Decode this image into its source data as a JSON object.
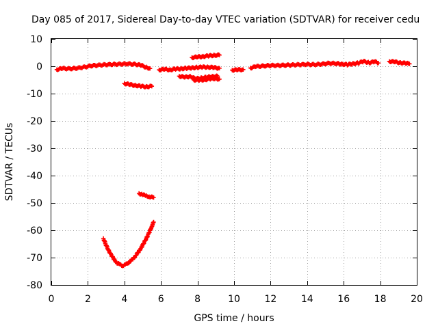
{
  "chart_data": {
    "type": "scatter",
    "title": "Day 085 of 2017, Sidereal Day-to-day VTEC variation (SDTVAR) for receiver cedu",
    "xlabel": "GPS time / hours",
    "ylabel": "SDTVAR / TECUs",
    "xlim": [
      0,
      20
    ],
    "ylim": [
      -80,
      10
    ],
    "xticks": [
      "0",
      "2",
      "4",
      "6",
      "8",
      "10",
      "12",
      "14",
      "16",
      "18",
      "20"
    ],
    "yticks": [
      "10",
      "0",
      "-10",
      "-20",
      "-30",
      "-40",
      "-50",
      "-60",
      "-70",
      "-80"
    ],
    "grid": true,
    "marker_color": "#ff0000",
    "series": [
      {
        "points": [
          [
            0.3,
            -1.2
          ],
          [
            0.6,
            -0.8
          ],
          [
            1.0,
            -0.9
          ],
          [
            1.4,
            -0.7
          ],
          [
            1.8,
            -0.3
          ],
          [
            2.2,
            0.2
          ],
          [
            2.6,
            0.4
          ],
          [
            3.0,
            0.6
          ],
          [
            3.4,
            0.7
          ],
          [
            3.8,
            0.8
          ],
          [
            4.2,
            0.9
          ],
          [
            4.6,
            0.7
          ],
          [
            4.9,
            0.4
          ],
          [
            5.2,
            -0.4
          ],
          [
            5.4,
            -0.8
          ]
        ]
      },
      {
        "points": [
          [
            5.9,
            -1.3
          ],
          [
            6.2,
            -1.1
          ],
          [
            6.5,
            -1.3
          ],
          [
            6.8,
            -1.0
          ],
          [
            7.1,
            -0.9
          ],
          [
            7.4,
            -0.7
          ],
          [
            7.7,
            -0.6
          ],
          [
            8.0,
            -0.4
          ],
          [
            8.3,
            -0.3
          ],
          [
            8.6,
            -0.3
          ],
          [
            8.9,
            -0.5
          ],
          [
            9.2,
            -0.7
          ]
        ]
      },
      {
        "points": [
          [
            7.0,
            -3.6
          ],
          [
            7.3,
            -4.0
          ],
          [
            7.6,
            -3.7
          ],
          [
            7.9,
            -4.6
          ],
          [
            8.2,
            -4.3
          ],
          [
            8.5,
            -4.0
          ],
          [
            8.8,
            -3.8
          ],
          [
            9.1,
            -3.6
          ]
        ]
      },
      {
        "points": [
          [
            7.8,
            -5.0
          ],
          [
            8.1,
            -5.1
          ],
          [
            8.4,
            -4.9
          ],
          [
            8.7,
            -4.6
          ],
          [
            9.0,
            -4.5
          ],
          [
            9.2,
            -4.7
          ]
        ]
      },
      {
        "points": [
          [
            7.7,
            3.2
          ],
          [
            8.0,
            3.4
          ],
          [
            8.3,
            3.6
          ],
          [
            8.6,
            3.8
          ],
          [
            8.9,
            4.0
          ],
          [
            9.2,
            4.1
          ]
        ]
      },
      {
        "points": [
          [
            9.9,
            -1.4
          ],
          [
            10.2,
            -1.3
          ],
          [
            10.5,
            -1.2
          ]
        ]
      },
      {
        "points": [
          [
            10.9,
            -0.6
          ],
          [
            11.2,
            -0.1
          ],
          [
            11.6,
            0.1
          ],
          [
            12.0,
            0.3
          ],
          [
            12.4,
            0.3
          ],
          [
            12.8,
            0.4
          ],
          [
            13.2,
            0.5
          ],
          [
            13.6,
            0.6
          ],
          [
            14.0,
            0.7
          ],
          [
            14.4,
            0.6
          ],
          [
            14.8,
            0.8
          ],
          [
            15.2,
            1.1
          ],
          [
            15.6,
            1.0
          ],
          [
            15.9,
            0.8
          ],
          [
            16.2,
            0.6
          ],
          [
            16.5,
            0.9
          ],
          [
            16.8,
            1.2
          ],
          [
            17.1,
            1.8
          ],
          [
            17.4,
            1.3
          ],
          [
            17.7,
            1.7
          ],
          [
            17.9,
            1.2
          ]
        ]
      },
      {
        "points": [
          [
            18.5,
            1.8
          ],
          [
            18.8,
            1.6
          ],
          [
            19.1,
            1.3
          ],
          [
            19.4,
            1.1
          ],
          [
            19.6,
            0.9
          ]
        ]
      },
      {
        "points": [
          [
            4.0,
            -6.3
          ],
          [
            4.3,
            -6.7
          ],
          [
            4.6,
            -7.0
          ],
          [
            4.9,
            -7.3
          ],
          [
            5.2,
            -7.5
          ],
          [
            5.5,
            -7.3
          ]
        ]
      },
      {
        "points": [
          [
            4.8,
            -46.5
          ],
          [
            5.0,
            -47.0
          ],
          [
            5.2,
            -47.4
          ],
          [
            5.4,
            -47.8
          ],
          [
            5.6,
            -48.0
          ]
        ]
      },
      {
        "points": [
          [
            2.85,
            -63.0
          ],
          [
            3.0,
            -65.5
          ],
          [
            3.15,
            -67.5
          ],
          [
            3.3,
            -69.3
          ],
          [
            3.45,
            -70.8
          ],
          [
            3.6,
            -71.9
          ],
          [
            3.75,
            -72.6
          ],
          [
            3.9,
            -72.9
          ],
          [
            4.05,
            -72.6
          ],
          [
            4.2,
            -72.0
          ],
          [
            4.35,
            -71.2
          ],
          [
            4.5,
            -70.2
          ],
          [
            4.65,
            -69.0
          ],
          [
            4.8,
            -67.6
          ],
          [
            4.95,
            -66.0
          ],
          [
            5.1,
            -64.2
          ],
          [
            5.25,
            -62.3
          ],
          [
            5.4,
            -60.2
          ],
          [
            5.5,
            -58.5
          ],
          [
            5.6,
            -57.0
          ]
        ]
      }
    ]
  }
}
